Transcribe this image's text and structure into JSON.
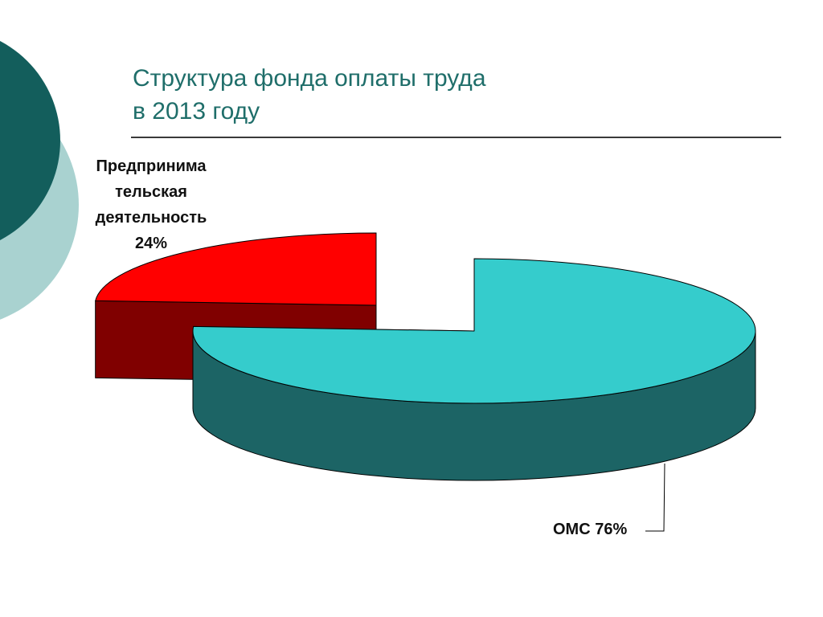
{
  "colors": {
    "deco_dark": "#135e5c",
    "deco_light": "#a9d2d0",
    "title": "#1f6e6a",
    "oms_top": "#35cccc",
    "oms_side": "#1c6465",
    "pred_top": "#ff0000",
    "pred_side": "#800000"
  },
  "slide": {
    "title_line1": "Структура фонда оплаты труда",
    "title_line2": "в 2013 году"
  },
  "chart_data": {
    "type": "pie",
    "style": "3d-exploded",
    "categories": [
      "Предпринимательская деятельность",
      "ОМС"
    ],
    "values": [
      24,
      76
    ],
    "unit": "%",
    "labels": [
      {
        "name_lines": [
          "Предпринима",
          "тельская",
          "деятельность"
        ],
        "value_text": "24%"
      },
      {
        "text": "ОМС 76%"
      }
    ],
    "legend": "none"
  }
}
